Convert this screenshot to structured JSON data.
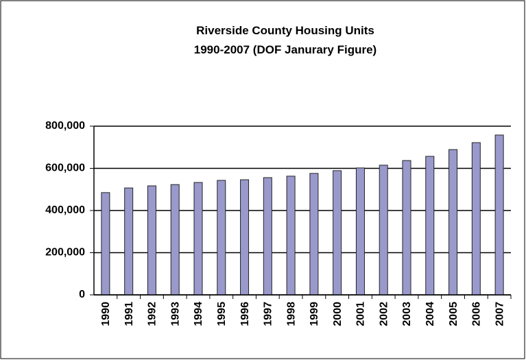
{
  "chart_data": {
    "type": "bar",
    "title": "Riverside County Housing Units",
    "subtitle": "1990-2007 (DOF Janurary Figure)",
    "categories": [
      "1990",
      "1991",
      "1992",
      "1993",
      "1994",
      "1995",
      "1996",
      "1997",
      "1998",
      "1999",
      "2000",
      "2001",
      "2002",
      "2003",
      "2004",
      "2005",
      "2006",
      "2007"
    ],
    "values": [
      485000,
      507000,
      517000,
      523000,
      533000,
      543000,
      546000,
      556000,
      563000,
      576000,
      589000,
      602000,
      615000,
      637000,
      657000,
      689000,
      722000,
      758000
    ],
    "color": "#9999cc",
    "ylim": [
      0,
      800000
    ],
    "yticks": [
      0,
      {
        "value": 200000,
        "label": "200,000"
      },
      {
        "value": 400000,
        "label": "400,000"
      },
      {
        "value": 600000,
        "label": "600,000"
      },
      {
        "value": 800000,
        "label": "800,000"
      }
    ],
    "grid": true
  }
}
